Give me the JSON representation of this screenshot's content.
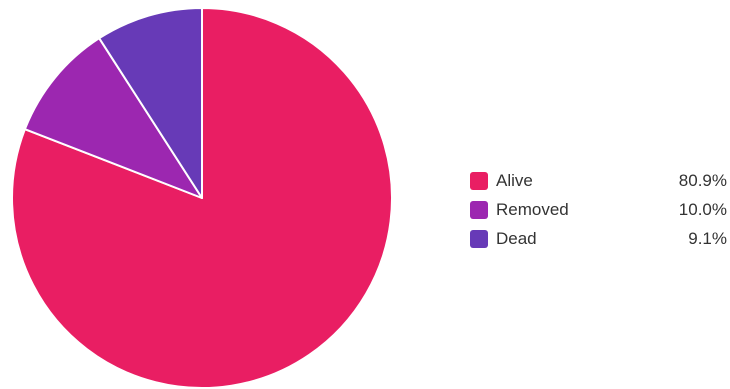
{
  "chart_data": {
    "type": "pie",
    "title": "",
    "legend_position": "right",
    "slices": [
      {
        "label": "Alive",
        "value": 80.9,
        "display": "80.9%",
        "color": "#e91e63"
      },
      {
        "label": "Removed",
        "value": 10.0,
        "display": "10.0%",
        "color": "#9c27b0"
      },
      {
        "label": "Dead",
        "value": 9.1,
        "display": "9.1%",
        "color": "#673ab7"
      }
    ]
  }
}
